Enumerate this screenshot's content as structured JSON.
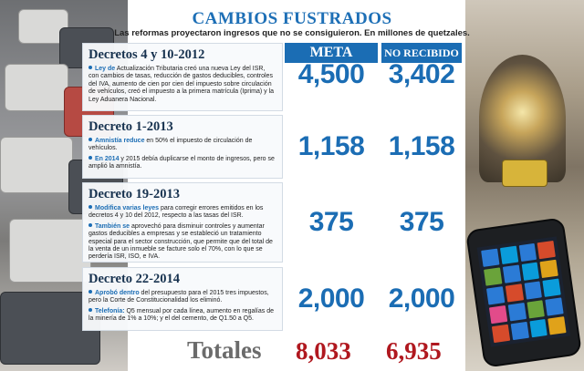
{
  "header": {
    "title": "CAMBIOS FUSTRADOS",
    "subtitle": "Las reformas proyectaron ingresos que no se consiguieron. En millones de quetzales."
  },
  "columns": {
    "meta": "META",
    "no_recibido": "NO RECIBIDO"
  },
  "rows": [
    {
      "title": "Decretos 4 y 10-2012",
      "points": [
        {
          "hl": "Ley de",
          "text": " Actualización Tributaria creó una nueva Ley del ISR, con cambios de tasas, reducción de gastos deducibles, controles del IVA, aumento de cien por cien del impuesto sobre circulación de vehículos, creó el impuesto a la primera matrícula (Iprima) y la Ley Aduanera Nacional."
        }
      ],
      "meta": "4,500",
      "no_recibido": "3,402"
    },
    {
      "title": "Decreto 1-2013",
      "points": [
        {
          "hl": "Amnistía reduce",
          "text": " en 50% el impuesto de circulación de vehículos."
        },
        {
          "hl": "En 2014",
          "text": " y 2015 debía duplicarse el monto de ingresos, pero se amplió la amnistía."
        }
      ],
      "meta": "1,158",
      "no_recibido": "1,158"
    },
    {
      "title": "Decreto 19-2013",
      "points": [
        {
          "hl": "Modifica varias leyes",
          "text": " para corregir errores emitidos en los decretos 4 y 10 del 2012, respecto a las tasas del ISR."
        },
        {
          "hl": "También se",
          "text": " aprovechó para disminuir controles y aumentar gastos deducibles a empresas y se estableció un tratamiento especial para el sector construcción, que permite que del total de la venta de un inmueble se facture solo el 70%, con lo que se perdería ISR, ISO, e IVA."
        }
      ],
      "meta": "375",
      "no_recibido": "375"
    },
    {
      "title": "Decreto 22-2014",
      "points": [
        {
          "hl": "Aprobó dentro",
          "text": " del presupuesto para el 2015 tres impuestos, pero la Corte de Constitucionalidad los eliminó."
        },
        {
          "hl": "Telefonía:",
          "text": " Q5 mensual por cada línea, aumento en regalías de la minería de 1% a 10%; y el del cemento, de Q1.50 a Q5."
        }
      ],
      "meta": "2,000",
      "no_recibido": "2,000"
    }
  ],
  "totals": {
    "label": "Totales",
    "meta": "8,033",
    "no_recibido": "6,935"
  },
  "colors": {
    "accent": "#1b6db4",
    "total_red": "#b0181f"
  },
  "icons": [
    "bullet-icon"
  ]
}
